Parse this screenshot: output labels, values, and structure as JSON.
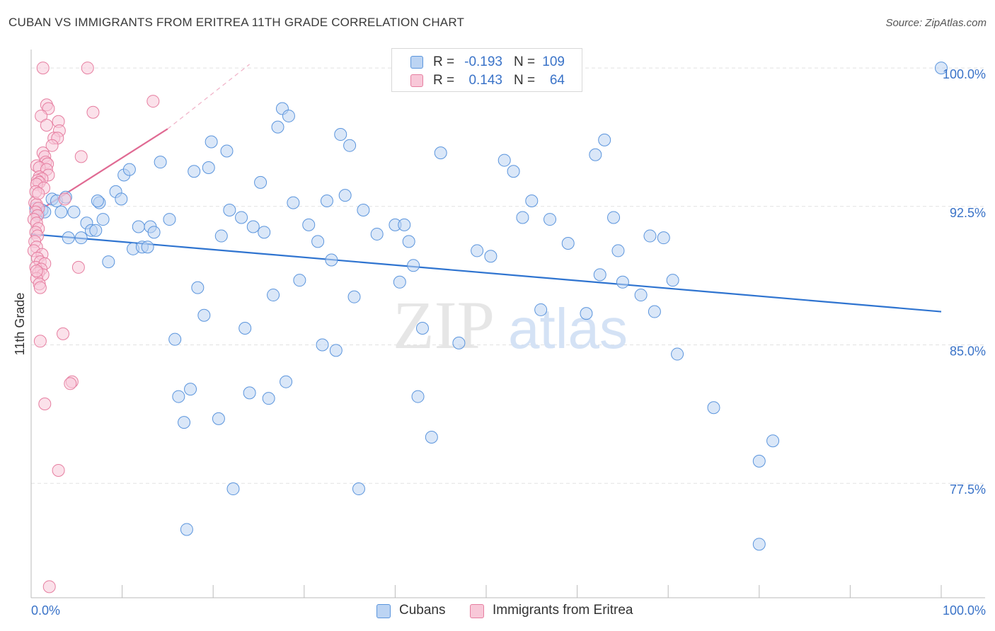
{
  "title": "CUBAN VS IMMIGRANTS FROM ERITREA 11TH GRADE CORRELATION CHART",
  "source": "Source: ZipAtlas.com",
  "watermark": {
    "zip": "ZIP",
    "atlas": "atlas"
  },
  "legend": {
    "r_label": "R =",
    "n_label": "N =",
    "rows": [
      {
        "r": "-0.193",
        "n": "109",
        "color": "#5b95dd",
        "fill": "#bcd4f3"
      },
      {
        "r": "0.143",
        "n": "64",
        "color": "#e67ea0",
        "fill": "#f8c8d8"
      }
    ]
  },
  "bottom_legend": [
    {
      "label": "Cubans",
      "color": "#5b95dd",
      "fill": "#bcd4f3"
    },
    {
      "label": "Immigrants from Eritrea",
      "color": "#e67ea0",
      "fill": "#f8c8d8"
    }
  ],
  "chart_data": {
    "type": "scatter",
    "title": "CUBAN VS IMMIGRANTS FROM ERITREA 11TH GRADE CORRELATION CHART",
    "ylabel": "11th Grade",
    "xlabel": "",
    "xlim": [
      0,
      100
    ],
    "ylim": [
      71.3,
      101.0
    ],
    "x_tick_labels": [
      "0.0%",
      "100.0%"
    ],
    "y_ticks": [
      77.5,
      85.0,
      92.5,
      100.0
    ],
    "y_tick_labels": [
      "77.5%",
      "85.0%",
      "92.5%",
      "100.0%"
    ],
    "grid": true,
    "legend_position": "top-center",
    "series": [
      {
        "name": "Cubans",
        "color": "#5b95dd",
        "fill": "#bcd4f3",
        "trend": {
          "x": [
            0,
            100
          ],
          "y": [
            91.0,
            86.8
          ]
        },
        "points": [
          [
            0.5,
            92.4
          ],
          [
            0.8,
            92.1
          ],
          [
            1.2,
            92.3
          ],
          [
            1.5,
            92.2
          ],
          [
            2.3,
            92.9
          ],
          [
            2.8,
            92.8
          ],
          [
            3.3,
            92.2
          ],
          [
            4.1,
            90.8
          ],
          [
            4.7,
            92.2
          ],
          [
            5.5,
            90.8
          ],
          [
            6.1,
            91.6
          ],
          [
            6.6,
            91.2
          ],
          [
            7.1,
            91.2
          ],
          [
            7.5,
            92.7
          ],
          [
            7.9,
            91.8
          ],
          [
            8.5,
            89.5
          ],
          [
            9.3,
            93.3
          ],
          [
            9.9,
            92.9
          ],
          [
            10.2,
            94.2
          ],
          [
            10.8,
            94.5
          ],
          [
            11.2,
            90.2
          ],
          [
            11.8,
            91.4
          ],
          [
            12.2,
            90.3
          ],
          [
            12.8,
            90.3
          ],
          [
            13.1,
            91.4
          ],
          [
            13.5,
            91.1
          ],
          [
            14.2,
            94.9
          ],
          [
            15.2,
            91.8
          ],
          [
            15.8,
            85.3
          ],
          [
            16.2,
            82.2
          ],
          [
            16.8,
            80.8
          ],
          [
            17.1,
            75.0
          ],
          [
            17.5,
            82.6
          ],
          [
            17.9,
            94.4
          ],
          [
            18.3,
            88.1
          ],
          [
            19.0,
            86.6
          ],
          [
            19.5,
            94.6
          ],
          [
            19.8,
            96.0
          ],
          [
            20.6,
            81.0
          ],
          [
            20.9,
            90.9
          ],
          [
            21.5,
            95.5
          ],
          [
            21.8,
            92.3
          ],
          [
            22.2,
            77.2
          ],
          [
            23.1,
            91.9
          ],
          [
            23.5,
            85.9
          ],
          [
            24.0,
            82.4
          ],
          [
            24.4,
            91.4
          ],
          [
            25.2,
            93.8
          ],
          [
            25.6,
            91.1
          ],
          [
            26.1,
            82.1
          ],
          [
            26.6,
            87.7
          ],
          [
            27.1,
            96.8
          ],
          [
            27.6,
            97.8
          ],
          [
            28.0,
            83.0
          ],
          [
            28.3,
            97.4
          ],
          [
            28.8,
            92.7
          ],
          [
            29.5,
            88.5
          ],
          [
            30.5,
            91.5
          ],
          [
            31.5,
            90.6
          ],
          [
            32.0,
            85.0
          ],
          [
            32.5,
            92.8
          ],
          [
            33.0,
            89.6
          ],
          [
            33.5,
            84.7
          ],
          [
            34.0,
            96.4
          ],
          [
            34.5,
            93.1
          ],
          [
            35.0,
            95.8
          ],
          [
            35.5,
            87.6
          ],
          [
            36.0,
            77.2
          ],
          [
            36.5,
            92.3
          ],
          [
            38.0,
            91.0
          ],
          [
            40.0,
            91.5
          ],
          [
            40.5,
            88.4
          ],
          [
            41.0,
            91.5
          ],
          [
            41.5,
            90.6
          ],
          [
            42.0,
            89.3
          ],
          [
            42.5,
            82.2
          ],
          [
            43.0,
            85.9
          ],
          [
            44.0,
            80.0
          ],
          [
            45.0,
            95.4
          ],
          [
            47.0,
            85.1
          ],
          [
            49.0,
            90.1
          ],
          [
            50.5,
            89.8
          ],
          [
            52.0,
            95.0
          ],
          [
            53.0,
            94.4
          ],
          [
            54.0,
            91.9
          ],
          [
            55.0,
            92.8
          ],
          [
            56.0,
            86.9
          ],
          [
            57.0,
            91.8
          ],
          [
            59.0,
            90.5
          ],
          [
            61.0,
            86.7
          ],
          [
            62.0,
            95.3
          ],
          [
            63.0,
            96.1
          ],
          [
            62.5,
            88.8
          ],
          [
            64.0,
            91.9
          ],
          [
            64.5,
            90.1
          ],
          [
            65.0,
            88.4
          ],
          [
            67.0,
            87.7
          ],
          [
            68.0,
            90.9
          ],
          [
            68.5,
            86.8
          ],
          [
            69.5,
            90.8
          ],
          [
            70.5,
            88.5
          ],
          [
            71.0,
            84.5
          ],
          [
            75.0,
            81.6
          ],
          [
            80.0,
            78.7
          ],
          [
            81.5,
            79.8
          ],
          [
            80.0,
            74.2
          ],
          [
            100.0,
            100.0
          ],
          [
            7.3,
            92.8
          ],
          [
            3.8,
            93.0
          ]
        ]
      },
      {
        "name": "Immigrants from Eritrea",
        "color": "#e67ea0",
        "fill": "#f8c8d8",
        "trend": {
          "x": [
            0,
            15
          ],
          "y": [
            92.0,
            96.7
          ],
          "dash_x": [
            15,
            24
          ],
          "dash_y": [
            96.7,
            100.2
          ]
        },
        "points": [
          [
            1.3,
            100.0
          ],
          [
            6.2,
            100.0
          ],
          [
            13.4,
            98.2
          ],
          [
            1.7,
            98.0
          ],
          [
            1.9,
            97.8
          ],
          [
            6.8,
            97.6
          ],
          [
            1.1,
            97.4
          ],
          [
            3.0,
            97.1
          ],
          [
            1.7,
            96.9
          ],
          [
            3.1,
            96.6
          ],
          [
            2.5,
            96.2
          ],
          [
            2.9,
            96.2
          ],
          [
            2.3,
            95.8
          ],
          [
            5.5,
            95.2
          ],
          [
            1.3,
            95.4
          ],
          [
            1.5,
            95.2
          ],
          [
            1.6,
            94.9
          ],
          [
            1.8,
            94.8
          ],
          [
            0.6,
            94.7
          ],
          [
            0.9,
            94.6
          ],
          [
            1.7,
            94.5
          ],
          [
            1.9,
            94.2
          ],
          [
            0.9,
            94.1
          ],
          [
            1.2,
            94.0
          ],
          [
            0.7,
            93.9
          ],
          [
            0.9,
            93.8
          ],
          [
            0.6,
            93.7
          ],
          [
            1.4,
            93.5
          ],
          [
            0.5,
            93.3
          ],
          [
            3.7,
            92.9
          ],
          [
            0.4,
            92.7
          ],
          [
            0.6,
            92.6
          ],
          [
            0.8,
            92.4
          ],
          [
            0.5,
            92.2
          ],
          [
            0.7,
            92.0
          ],
          [
            0.3,
            91.8
          ],
          [
            0.6,
            91.6
          ],
          [
            0.8,
            91.3
          ],
          [
            0.5,
            91.1
          ],
          [
            0.7,
            90.9
          ],
          [
            0.4,
            90.6
          ],
          [
            0.6,
            90.3
          ],
          [
            0.3,
            90.1
          ],
          [
            1.2,
            89.9
          ],
          [
            0.7,
            89.7
          ],
          [
            1.0,
            89.5
          ],
          [
            1.5,
            89.4
          ],
          [
            0.5,
            89.2
          ],
          [
            1.1,
            89.1
          ],
          [
            0.8,
            88.9
          ],
          [
            1.3,
            88.8
          ],
          [
            0.6,
            88.6
          ],
          [
            0.9,
            88.3
          ],
          [
            5.2,
            89.2
          ],
          [
            1.0,
            88.1
          ],
          [
            3.5,
            85.6
          ],
          [
            1.0,
            85.2
          ],
          [
            4.5,
            83.0
          ],
          [
            4.3,
            82.9
          ],
          [
            1.5,
            81.8
          ],
          [
            3.0,
            78.2
          ],
          [
            2.0,
            71.9
          ],
          [
            0.8,
            93.2
          ],
          [
            0.6,
            89.0
          ]
        ]
      }
    ]
  }
}
